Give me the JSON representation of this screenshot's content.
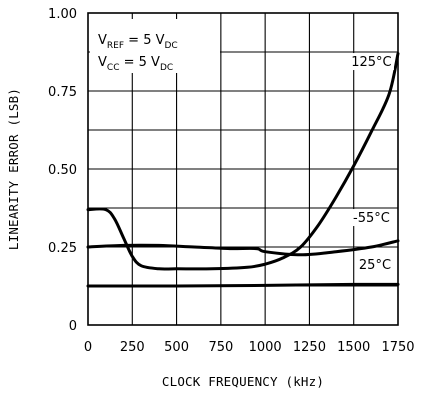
{
  "chart_data": {
    "type": "line",
    "xlabel": "CLOCK FREQUENCY (kHz)",
    "ylabel": "LINEARITY ERROR (LSB)",
    "xlim": [
      0,
      1750
    ],
    "ylim": [
      0,
      1.0
    ],
    "xticks": [
      "0",
      "250",
      "500",
      "750",
      "1000",
      "1250",
      "1500",
      "1750"
    ],
    "xtick_values": [
      0,
      250,
      500,
      750,
      1000,
      1250,
      1500,
      1750
    ],
    "yticks": [
      "0",
      "0.25",
      "0.50",
      "0.75",
      "1.00"
    ],
    "ytick_values": [
      0,
      0.25,
      0.5,
      0.75,
      1.0
    ],
    "grid": true,
    "conditions": [
      {
        "main": "V",
        "sub": "REF",
        "rest": " = 5 V",
        "sub2": "DC"
      },
      {
        "main": "V",
        "sub": "CC",
        "rest": " = 5 V",
        "sub2": "DC"
      }
    ],
    "series": [
      {
        "name": "125°C",
        "x": [
          0,
          100,
          150,
          200,
          250,
          300,
          400,
          500,
          700,
          900,
          1000,
          1100,
          1200,
          1300,
          1400,
          1500,
          1600,
          1700,
          1750
        ],
        "y": [
          0.37,
          0.37,
          0.34,
          0.28,
          0.22,
          0.19,
          0.18,
          0.18,
          0.18,
          0.185,
          0.195,
          0.215,
          0.25,
          0.32,
          0.41,
          0.51,
          0.62,
          0.74,
          0.87
        ]
      },
      {
        "name": "-55°C",
        "x": [
          0,
          200,
          400,
          600,
          800,
          950,
          1000,
          1200,
          1400,
          1600,
          1750
        ],
        "y": [
          0.25,
          0.255,
          0.255,
          0.25,
          0.245,
          0.245,
          0.235,
          0.225,
          0.235,
          0.25,
          0.27
        ]
      },
      {
        "name": "25°C",
        "x": [
          0,
          500,
          1000,
          1500,
          1750
        ],
        "y": [
          0.125,
          0.125,
          0.127,
          0.13,
          0.13
        ]
      }
    ],
    "series_labels": [
      {
        "series": "125°C",
        "x": 1600,
        "y": 0.83
      },
      {
        "series": "-55°C",
        "x": 1600,
        "y": 0.33
      },
      {
        "series": "25°C",
        "x": 1620,
        "y": 0.18
      }
    ]
  }
}
